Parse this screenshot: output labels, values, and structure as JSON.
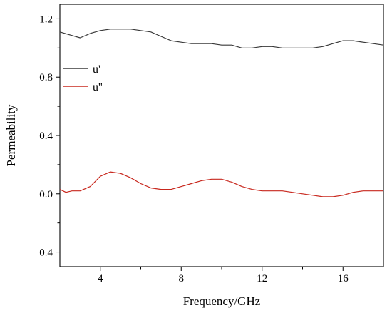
{
  "chart_data": {
    "type": "line",
    "xlabel": "Frequency/GHz",
    "ylabel": "Permeability",
    "xlim": [
      2,
      18
    ],
    "ylim": [
      -0.5,
      1.3
    ],
    "x_ticks": [
      4,
      8,
      12,
      16
    ],
    "x_tick_labels": [
      "4",
      "8",
      "12",
      "16"
    ],
    "y_ticks": [
      -0.4,
      0.0,
      0.4,
      0.8,
      1.2
    ],
    "y_tick_labels": [
      "−0.4",
      "0.0",
      "0.4",
      "0.8",
      "1.2"
    ],
    "grid": false,
    "legend_position": "upper-left",
    "series": [
      {
        "name": "u'",
        "color": "#3a3a3a",
        "x": [
          2.0,
          2.5,
          3.0,
          3.5,
          4.0,
          4.5,
          5.0,
          5.5,
          6.0,
          6.5,
          7.0,
          7.5,
          8.0,
          8.5,
          9.0,
          9.5,
          10.0,
          10.5,
          11.0,
          11.5,
          12.0,
          12.5,
          13.0,
          13.5,
          14.0,
          14.5,
          15.0,
          15.5,
          16.0,
          16.5,
          17.0,
          17.5,
          18.0
        ],
        "y": [
          1.11,
          1.09,
          1.07,
          1.1,
          1.12,
          1.13,
          1.13,
          1.13,
          1.12,
          1.11,
          1.08,
          1.05,
          1.04,
          1.03,
          1.03,
          1.03,
          1.02,
          1.02,
          1.0,
          1.0,
          1.01,
          1.01,
          1.0,
          1.0,
          1.0,
          1.0,
          1.01,
          1.03,
          1.05,
          1.05,
          1.04,
          1.03,
          1.02
        ]
      },
      {
        "name": "u''",
        "color": "#c8281e",
        "x": [
          2.0,
          2.3,
          2.6,
          3.0,
          3.5,
          4.0,
          4.5,
          5.0,
          5.5,
          6.0,
          6.5,
          7.0,
          7.5,
          8.0,
          8.5,
          9.0,
          9.5,
          10.0,
          10.5,
          11.0,
          11.5,
          12.0,
          12.5,
          13.0,
          13.5,
          14.0,
          14.5,
          15.0,
          15.5,
          16.0,
          16.5,
          17.0,
          17.5,
          18.0
        ],
        "y": [
          0.03,
          0.01,
          0.02,
          0.02,
          0.05,
          0.12,
          0.15,
          0.14,
          0.11,
          0.07,
          0.04,
          0.03,
          0.03,
          0.05,
          0.07,
          0.09,
          0.1,
          0.1,
          0.08,
          0.05,
          0.03,
          0.02,
          0.02,
          0.02,
          0.01,
          0.0,
          -0.01,
          -0.02,
          -0.02,
          -0.01,
          0.01,
          0.02,
          0.02,
          0.02
        ]
      }
    ]
  }
}
